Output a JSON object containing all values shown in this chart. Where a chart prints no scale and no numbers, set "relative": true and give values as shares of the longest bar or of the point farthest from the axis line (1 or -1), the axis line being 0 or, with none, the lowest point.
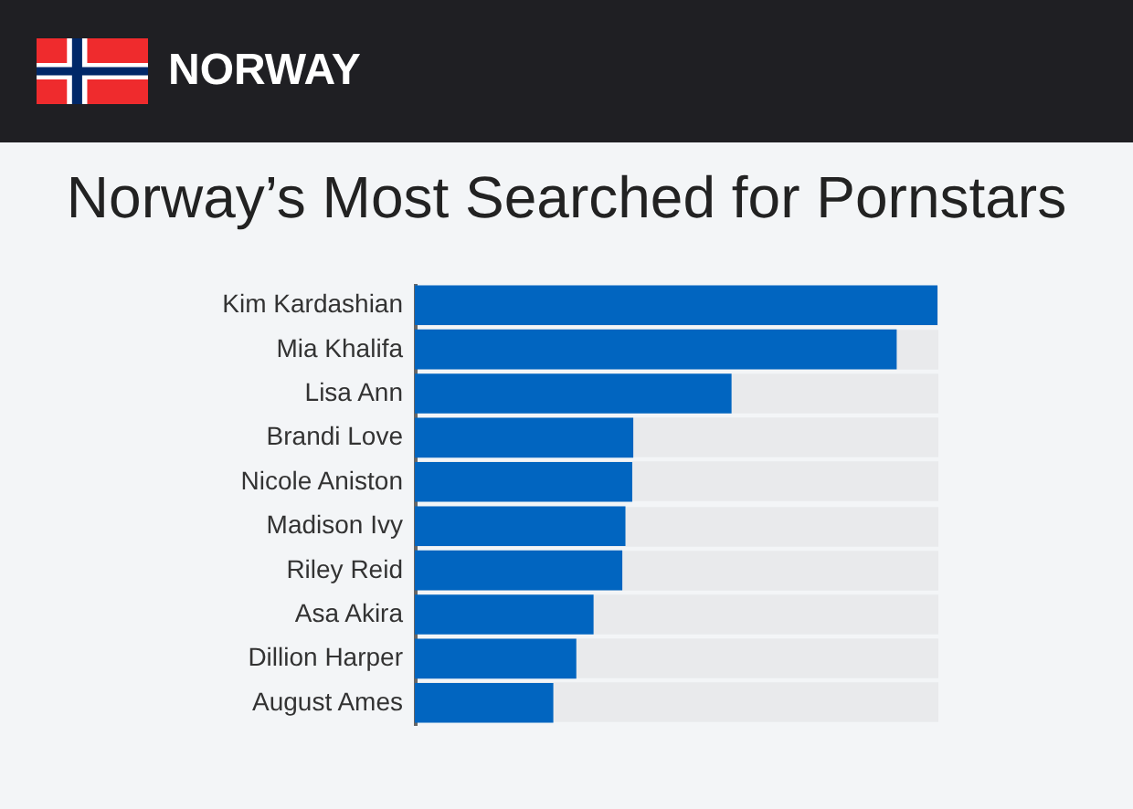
{
  "chart_data": {
    "type": "bar",
    "orientation": "horizontal",
    "relative": true,
    "title": "Norway’s Most Searched for Pornstars",
    "annotations": [
      "NORWAY"
    ],
    "categories": [
      "Kim Kardashian",
      "Mia Khalifa",
      "Lisa Ann",
      "Brandi Love",
      "Nicole Aniston",
      "Madison Ivy",
      "Riley Reid",
      "Asa Akira",
      "Dillion Harper",
      "August Ames"
    ],
    "values": [
      1,
      0.922,
      0.606,
      0.418,
      0.416,
      0.403,
      0.397,
      0.342,
      0.309,
      0.265
    ],
    "color": "#0165c0",
    "grid": "y"
  }
}
